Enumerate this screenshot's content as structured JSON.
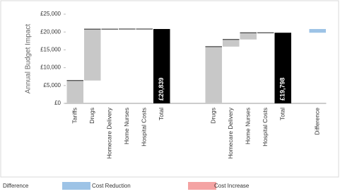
{
  "chart_data": {
    "type": "waterfall",
    "y_label": "Annual Budget Impact",
    "categories": [
      "Tariffs",
      "Drugs",
      "Homecare Delivery",
      "Home Nurses",
      "Hospital Costs",
      "Total",
      null,
      null,
      "Drugs",
      "Homecare Delivery",
      "Home Nurses",
      "Hospital Costs",
      "Total",
      null,
      "Difference"
    ],
    "measures": [
      "relative",
      "relative",
      "relative",
      "relative",
      "relative",
      "total",
      null,
      null,
      "relative",
      "relative",
      "relative",
      "relative",
      "total",
      null,
      "difference"
    ],
    "values": [
      6400,
      14400,
      13,
      13,
      13,
      20839,
      null,
      null,
      15900,
      2000,
      1880,
      18,
      19798,
      null,
      -1041
    ],
    "value_labels": [
      null,
      null,
      null,
      null,
      null,
      "£20,839",
      null,
      null,
      null,
      null,
      null,
      null,
      "£19,798",
      null,
      null
    ],
    "step_color": "#c8c8c8",
    "total_color": "#000000",
    "ylim": [
      0,
      25000
    ],
    "yticks": [
      {
        "value": 0,
        "label": "£0"
      },
      {
        "value": 5000,
        "label": "£5,000"
      },
      {
        "value": 10000,
        "label": "£10,000"
      },
      {
        "value": 15000,
        "label": "£15,000"
      },
      {
        "value": 20000,
        "label": "£20,000"
      },
      {
        "value": 25000,
        "label": "£25,000"
      }
    ],
    "legend": {
      "title": "Difference",
      "entries": [
        {
          "name": "Cost Reduction",
          "color": "#9dc3e6"
        },
        {
          "name": "Cost Increase",
          "color": "#f4a3a3"
        }
      ]
    }
  }
}
